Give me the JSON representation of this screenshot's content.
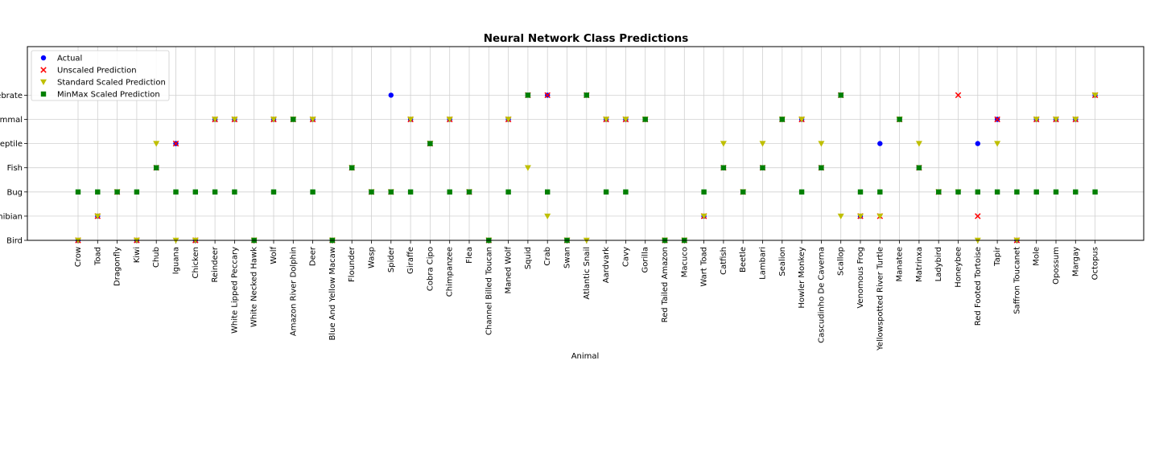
{
  "chart_data": {
    "type": "scatter",
    "title": "Neural Network Class Predictions",
    "xlabel": "Animal",
    "ylabel": "",
    "grid": true,
    "legend_position": "top-left",
    "y_categories": [
      "Bird",
      "Amphibian",
      "Bug",
      "Fish",
      "Reptile",
      "Mammal",
      "Invertebrate"
    ],
    "categories": [
      "Crow",
      "Toad",
      "Dragonfly",
      "Kiwi",
      "Chub",
      "Iguana",
      "Chicken",
      "Reindeer",
      "White Lipped Peccary",
      "White Necked Hawk",
      "Wolf",
      "Amazon River Dolphin",
      "Deer",
      "Blue And Yellow Macaw",
      "Flounder",
      "Wasp",
      "Spider",
      "Giraffe",
      "Cobra Cipo",
      "Chimpanzee",
      "Flea",
      "Channel Billed Toucan",
      "Maned Wolf",
      "Squid",
      "Crab",
      "Swan",
      "Atlantic Snail",
      "Aardvark",
      "Cavy",
      "Gorilla",
      "Red Tailed Amazon",
      "Macuco",
      "Wart Toad",
      "Catfish",
      "Beetle",
      "Lambari",
      "Sealion",
      "Howler Monkey",
      "Cascudinho De Caverna",
      "Scallop",
      "Venomous Frog",
      "Yellowspotted River Turtle",
      "Manatee",
      "Matrinxa",
      "Ladybird",
      "Honeybee",
      "Red Footed Tortoise",
      "Tapir",
      "Saffron Toucanet",
      "Mole",
      "Opossum",
      "Margay",
      "Octopus"
    ],
    "series": [
      {
        "name": "Actual",
        "color": "#0000ff",
        "marker": "circle",
        "values": [
          "Bird",
          "Amphibian",
          "Bug",
          "Bird",
          "Fish",
          "Reptile",
          "Bird",
          "Mammal",
          "Mammal",
          "Bird",
          "Mammal",
          "Mammal",
          "Mammal",
          "Bird",
          "Fish",
          "Bug",
          "Invertebrate",
          "Mammal",
          "Reptile",
          "Mammal",
          "Bug",
          "Bird",
          "Mammal",
          "Invertebrate",
          "Invertebrate",
          "Bird",
          "Invertebrate",
          "Mammal",
          "Mammal",
          "Mammal",
          "Bird",
          "Bird",
          "Amphibian",
          "Fish",
          "Bug",
          "Fish",
          "Mammal",
          "Mammal",
          "Fish",
          "Invertebrate",
          "Amphibian",
          "Reptile",
          "Mammal",
          "Fish",
          "Bug",
          "Bug",
          "Reptile",
          "Mammal",
          "Bird",
          "Mammal",
          "Mammal",
          "Mammal",
          "Invertebrate"
        ]
      },
      {
        "name": "Unscaled Prediction",
        "color": "#ff0000",
        "marker": "x",
        "values": [
          "Bird",
          "Amphibian",
          "Bug",
          "Bird",
          "Fish",
          "Reptile",
          "Bird",
          "Mammal",
          "Mammal",
          "Bird",
          "Mammal",
          "Mammal",
          "Mammal",
          "Bird",
          "Fish",
          "Bug",
          "Bug",
          "Mammal",
          "Reptile",
          "Mammal",
          "Bug",
          "Bird",
          "Mammal",
          "Invertebrate",
          "Invertebrate",
          "Bird",
          "Invertebrate",
          "Mammal",
          "Mammal",
          "Mammal",
          "Bird",
          "Bird",
          "Amphibian",
          "Fish",
          "Bug",
          "Fish",
          "Mammal",
          "Mammal",
          "Fish",
          "Invertebrate",
          "Amphibian",
          "Amphibian",
          "Mammal",
          "Fish",
          "Bug",
          "Invertebrate",
          "Amphibian",
          "Mammal",
          "Bird",
          "Mammal",
          "Mammal",
          "Mammal",
          "Invertebrate"
        ]
      },
      {
        "name": "Standard Scaled Prediction",
        "color": "#bfbf00",
        "marker": "triangle-down",
        "values": [
          "Bird",
          "Amphibian",
          "Bug",
          "Bird",
          "Reptile",
          "Bird",
          "Bird",
          "Mammal",
          "Mammal",
          "Bird",
          "Mammal",
          "Mammal",
          "Mammal",
          "Bird",
          "Fish",
          "Bug",
          "Bug",
          "Mammal",
          "Reptile",
          "Mammal",
          "Bug",
          "Bird",
          "Mammal",
          "Fish",
          "Amphibian",
          "Bird",
          "Bird",
          "Mammal",
          "Mammal",
          "Mammal",
          "Bird",
          "Bird",
          "Amphibian",
          "Reptile",
          "Bug",
          "Reptile",
          "Mammal",
          "Mammal",
          "Reptile",
          "Amphibian",
          "Amphibian",
          "Amphibian",
          "Mammal",
          "Reptile",
          "Bug",
          "Bug",
          "Bird",
          "Reptile",
          "Bird",
          "Mammal",
          "Mammal",
          "Mammal",
          "Invertebrate"
        ]
      },
      {
        "name": "MinMax Scaled Prediction",
        "color": "#008000",
        "marker": "square",
        "values": [
          "Bug",
          "Bug",
          "Bug",
          "Bug",
          "Fish",
          "Bug",
          "Bug",
          "Bug",
          "Bug",
          "Bird",
          "Bug",
          "Mammal",
          "Bug",
          "Bird",
          "Fish",
          "Bug",
          "Bug",
          "Bug",
          "Reptile",
          "Bug",
          "Bug",
          "Bird",
          "Bug",
          "Invertebrate",
          "Bug",
          "Bird",
          "Invertebrate",
          "Bug",
          "Bug",
          "Mammal",
          "Bird",
          "Bird",
          "Bug",
          "Fish",
          "Bug",
          "Fish",
          "Mammal",
          "Bug",
          "Fish",
          "Invertebrate",
          "Bug",
          "Bug",
          "Mammal",
          "Fish",
          "Bug",
          "Bug",
          "Bug",
          "Bug",
          "Bug",
          "Bug",
          "Bug",
          "Bug",
          "Bug"
        ]
      }
    ]
  }
}
